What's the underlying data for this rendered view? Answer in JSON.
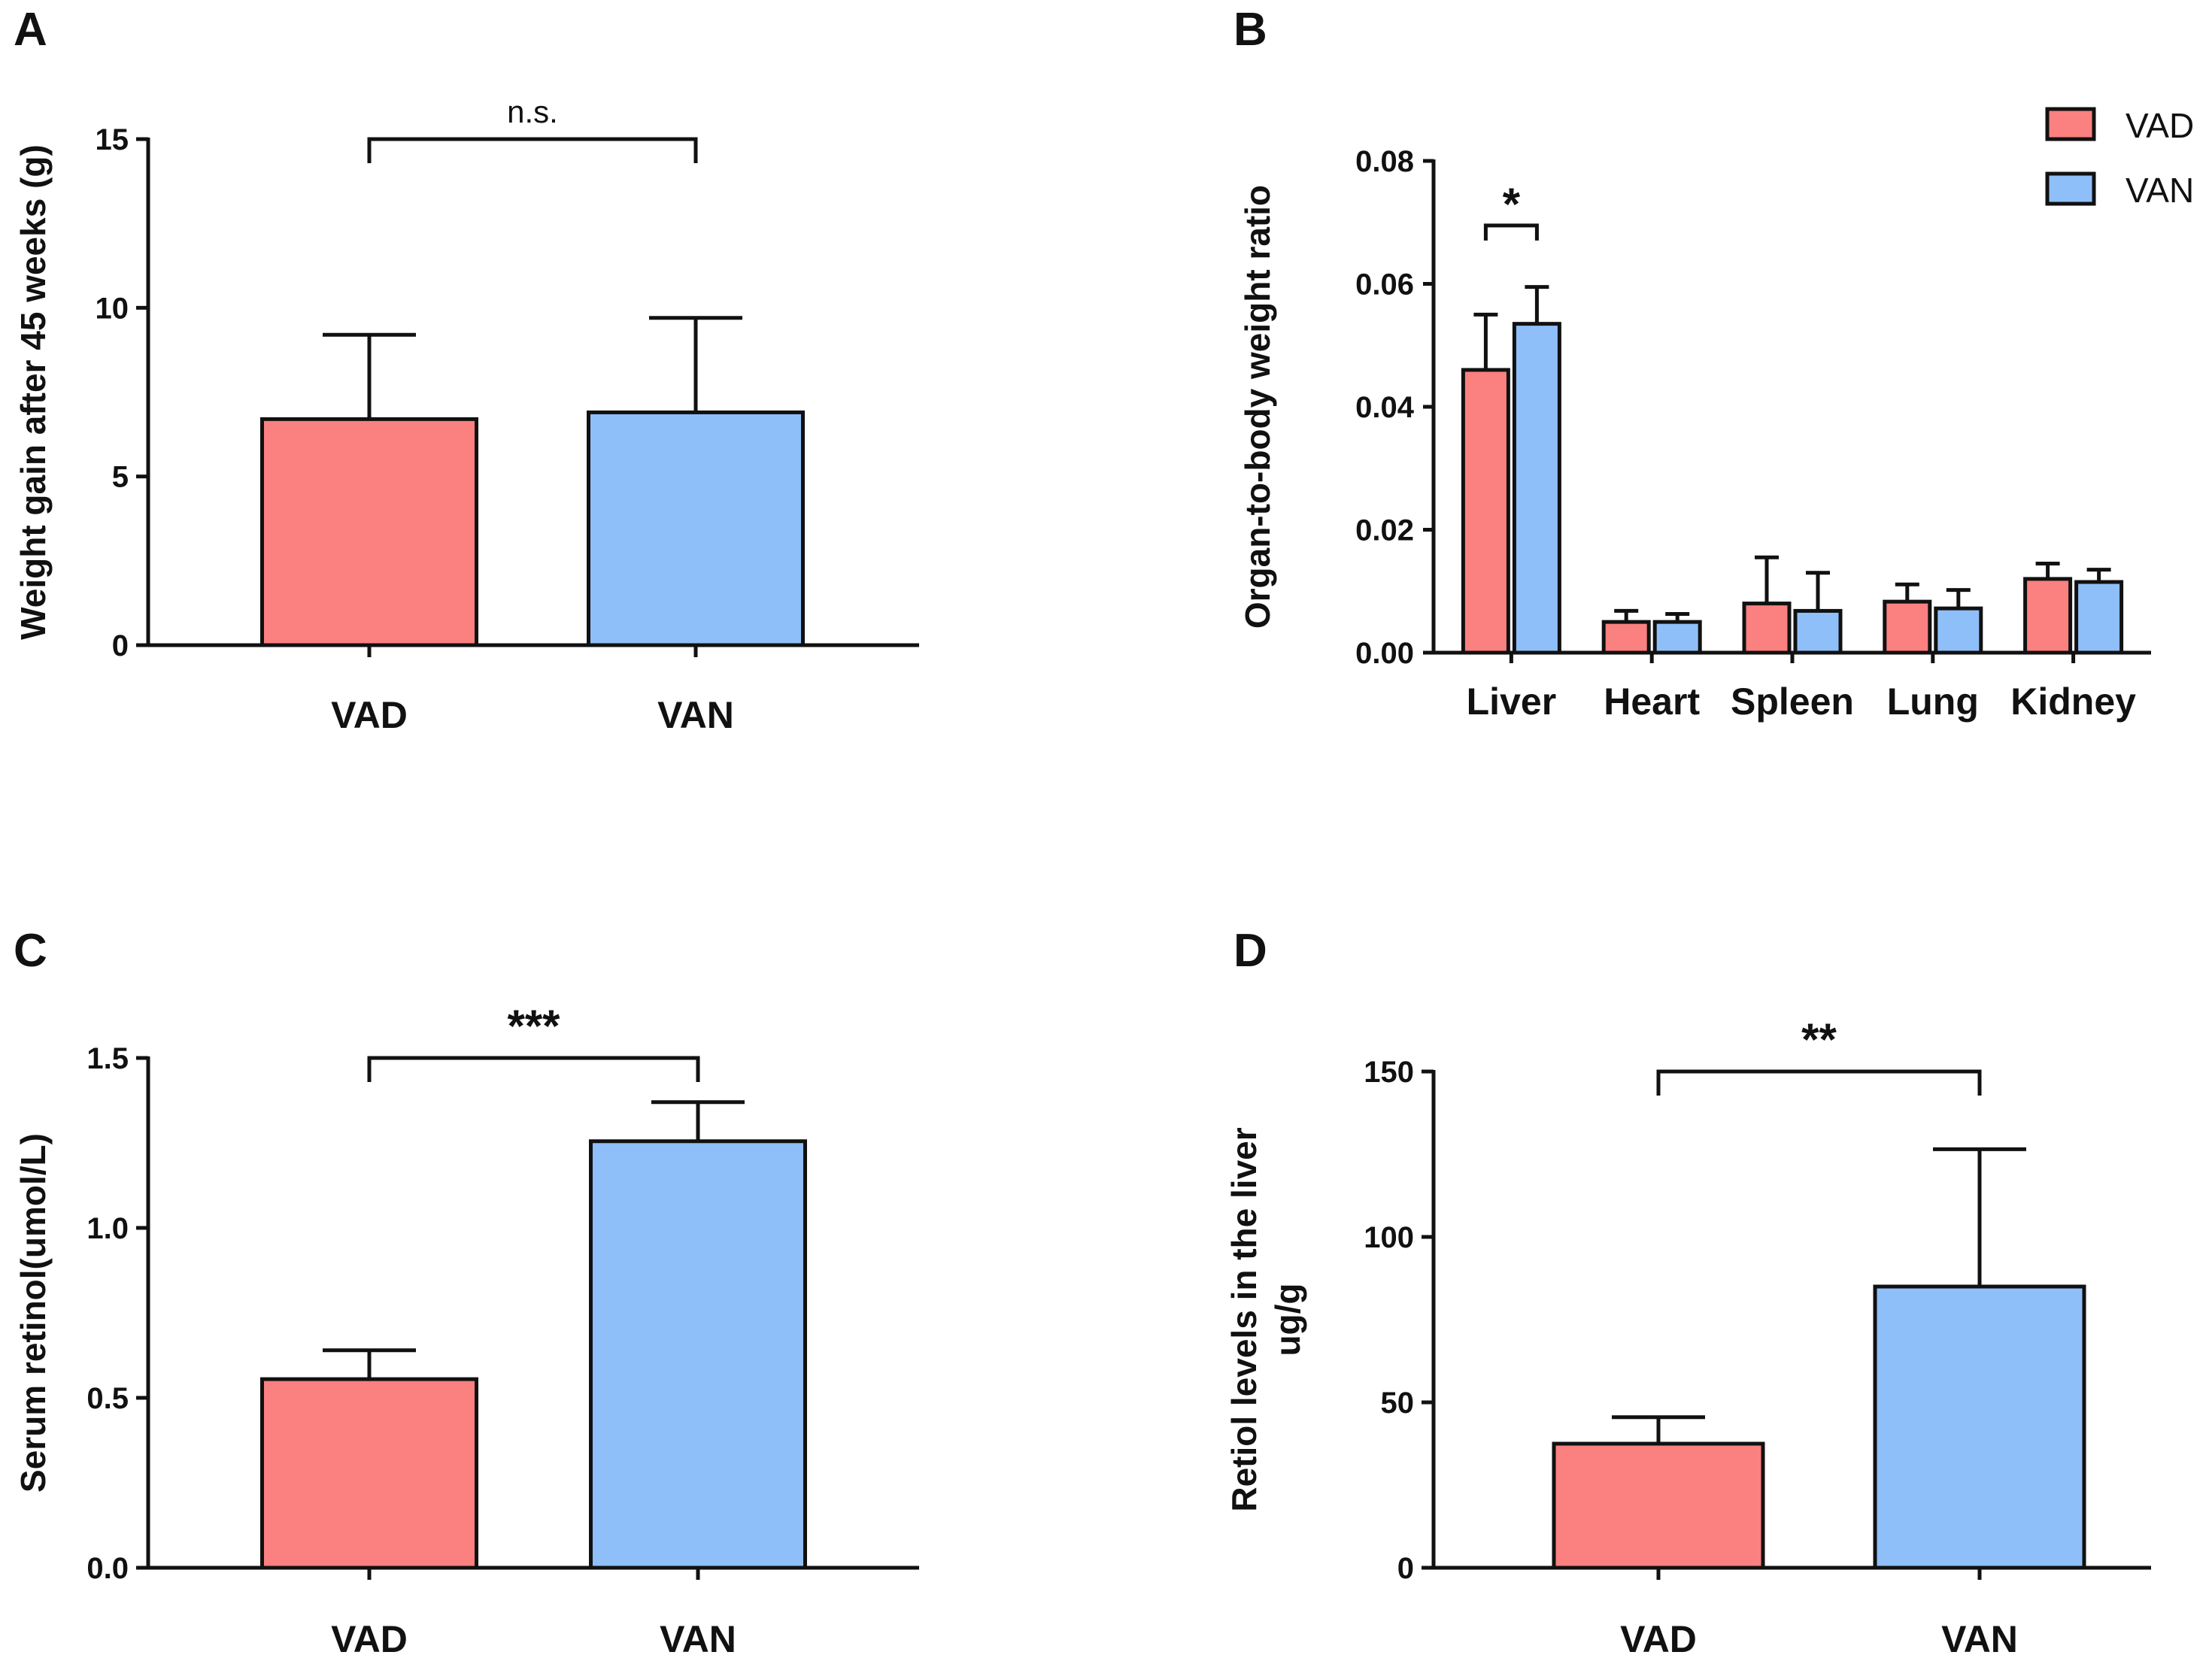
{
  "colors": {
    "VAD": "#fb8080",
    "VAN": "#8fbff8"
  },
  "legend": {
    "items": [
      "VAD",
      "VAN"
    ]
  },
  "panels": [
    "A",
    "B",
    "C",
    "D"
  ],
  "chart_data": [
    {
      "id": "A",
      "type": "bar",
      "title": "",
      "xlabel": "",
      "ylabel": "Weight gain after 45 weeks (g)",
      "categories": [
        "VAD",
        "VAN"
      ],
      "values": [
        6.7,
        6.9
      ],
      "errors": [
        2.5,
        2.8
      ],
      "ylim": [
        0,
        15
      ],
      "yticks": [
        0,
        5,
        10,
        15
      ],
      "yticklabels": [
        "0",
        "5",
        "10",
        "15"
      ],
      "significance": [
        {
          "between": [
            0,
            1
          ],
          "label": "n.s.",
          "y": 15
        }
      ]
    },
    {
      "id": "B",
      "type": "bar",
      "title": "",
      "xlabel": "",
      "ylabel": "Organ-to-body weight ratio",
      "categories": [
        "Liver",
        "Heart",
        "Spleen",
        "Lung",
        "Kidney"
      ],
      "series": [
        {
          "name": "VAD",
          "values": [
            0.046,
            0.005,
            0.008,
            0.0083,
            0.012
          ],
          "errors": [
            0.009,
            0.0018,
            0.0075,
            0.0028,
            0.0025
          ]
        },
        {
          "name": "VAN",
          "values": [
            0.0535,
            0.005,
            0.0068,
            0.0072,
            0.0115
          ],
          "errors": [
            0.006,
            0.0013,
            0.0062,
            0.003,
            0.002
          ]
        }
      ],
      "ylim": [
        0,
        0.08
      ],
      "yticks": [
        0,
        0.02,
        0.04,
        0.06,
        0.08
      ],
      "yticklabels": [
        "0.00",
        "0.02",
        "0.04",
        "0.06",
        "0.08"
      ],
      "legend_position": "top-right",
      "significance": [
        {
          "category": 0,
          "label": "*",
          "y": 0.0695
        }
      ]
    },
    {
      "id": "C",
      "type": "bar",
      "title": "",
      "xlabel": "",
      "ylabel": "Serum retinol(umol/L)",
      "categories": [
        "VAD",
        "VAN"
      ],
      "values": [
        0.555,
        1.255
      ],
      "errors": [
        0.085,
        0.115
      ],
      "ylim": [
        0,
        1.5
      ],
      "yticks": [
        0,
        0.5,
        1.0,
        1.5
      ],
      "yticklabels": [
        "0.0",
        "0.5",
        "1.0",
        "1.5"
      ],
      "significance": [
        {
          "between": [
            0,
            1
          ],
          "label": "***",
          "y": 1.5
        }
      ]
    },
    {
      "id": "D",
      "type": "bar",
      "title": "",
      "xlabel": "",
      "ylabel": [
        "Retiol levels in the liver",
        "ug/g"
      ],
      "categories": [
        "VAD",
        "VAN"
      ],
      "values": [
        37.5,
        85
      ],
      "errors": [
        8,
        41.5
      ],
      "ylim": [
        0,
        150
      ],
      "yticks": [
        0,
        50,
        100,
        150
      ],
      "yticklabels": [
        "0",
        "50",
        "100",
        "150"
      ],
      "significance": [
        {
          "between": [
            0,
            1
          ],
          "label": "**",
          "y": 150
        }
      ]
    }
  ]
}
